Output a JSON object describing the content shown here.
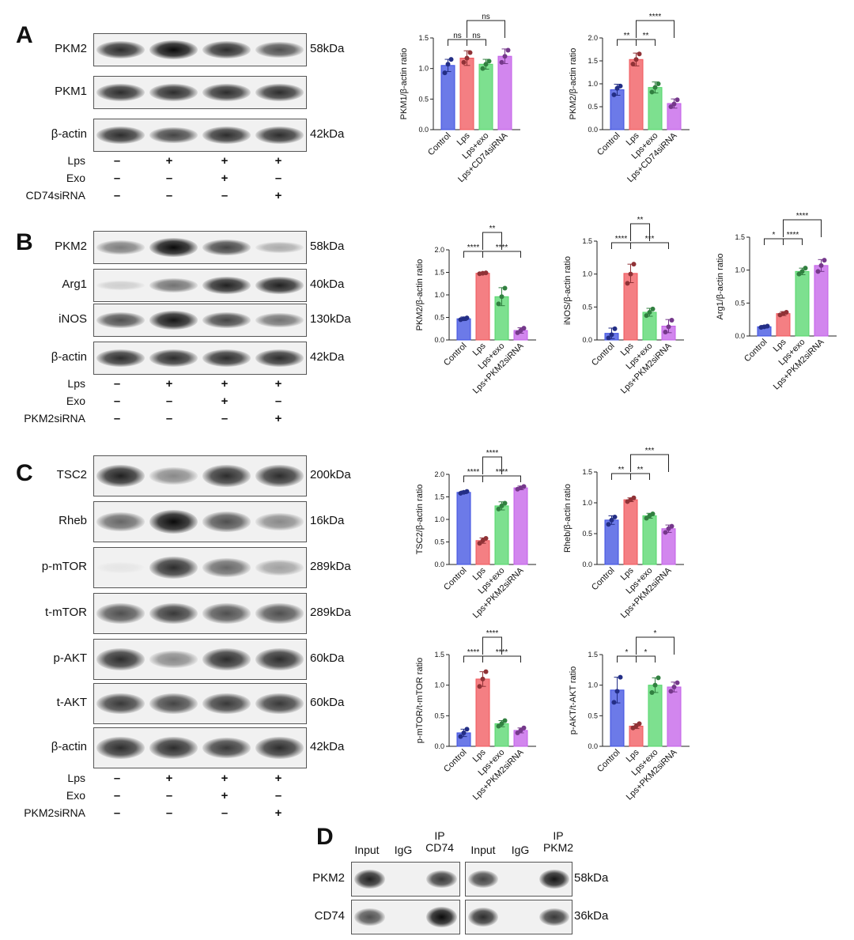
{
  "panels": {
    "A": {
      "letter": "A",
      "blots": [
        {
          "label": "PKM2",
          "kda": "58kDa",
          "lanes": [
            0.85,
            1.0,
            0.85,
            0.7
          ]
        },
        {
          "label": "PKM1",
          "kda": "",
          "lanes": [
            0.85,
            0.85,
            0.85,
            0.85
          ]
        },
        {
          "label": "β-actin",
          "kda": "42kDa",
          "lanes": [
            0.85,
            0.75,
            0.85,
            0.85
          ]
        }
      ],
      "treatments": [
        {
          "label": "Lps",
          "signs": [
            "–",
            "+",
            "+",
            "+"
          ]
        },
        {
          "label": "Exo",
          "signs": [
            "–",
            "–",
            "+",
            "–"
          ]
        },
        {
          "label": "CD74siRNA",
          "signs": [
            "–",
            "–",
            "–",
            "+"
          ]
        }
      ]
    },
    "B": {
      "letter": "B",
      "blots": [
        {
          "label": "PKM2",
          "kda": "58kDa",
          "lanes": [
            0.5,
            1.0,
            0.75,
            0.3
          ]
        },
        {
          "label": "Arg1",
          "kda": "40kDa",
          "lanes": [
            0.15,
            0.55,
            0.9,
            0.9
          ]
        },
        {
          "label": "iNOS",
          "kda": "130kDa",
          "lanes": [
            0.7,
            0.95,
            0.75,
            0.55
          ]
        },
        {
          "label": "β-actin",
          "kda": "42kDa",
          "lanes": [
            0.85,
            0.85,
            0.85,
            0.85
          ]
        }
      ],
      "treatments": [
        {
          "label": "Lps",
          "signs": [
            "–",
            "+",
            "+",
            "+"
          ]
        },
        {
          "label": "Exo",
          "signs": [
            "–",
            "–",
            "+",
            "–"
          ]
        },
        {
          "label": "PKM2siRNA",
          "signs": [
            "–",
            "–",
            "–",
            "+"
          ]
        }
      ]
    },
    "C": {
      "letter": "C",
      "blots": [
        {
          "label": "TSC2",
          "kda": "200kDa",
          "lanes": [
            0.9,
            0.45,
            0.85,
            0.85
          ]
        },
        {
          "label": "Rheb",
          "kda": "16kDa",
          "lanes": [
            0.6,
            1.0,
            0.7,
            0.45
          ]
        },
        {
          "label": "p-mTOR",
          "kda": "289kDa",
          "lanes": [
            0.05,
            0.85,
            0.6,
            0.35
          ]
        },
        {
          "label": "t-mTOR",
          "kda": "289kDa",
          "lanes": [
            0.7,
            0.8,
            0.7,
            0.7
          ]
        },
        {
          "label": "p-AKT",
          "kda": "60kDa",
          "lanes": [
            0.85,
            0.45,
            0.85,
            0.85
          ]
        },
        {
          "label": "t-AKT",
          "kda": "60kDa",
          "lanes": [
            0.8,
            0.75,
            0.8,
            0.8
          ]
        },
        {
          "label": "β-actin",
          "kda": "42kDa",
          "lanes": [
            0.85,
            0.85,
            0.8,
            0.85
          ]
        }
      ],
      "treatments": [
        {
          "label": "Lps",
          "signs": [
            "–",
            "+",
            "+",
            "+"
          ]
        },
        {
          "label": "Exo",
          "signs": [
            "–",
            "–",
            "+",
            "–"
          ]
        },
        {
          "label": "PKM2siRNA",
          "signs": [
            "–",
            "–",
            "–",
            "+"
          ]
        }
      ]
    },
    "D": {
      "letter": "D",
      "headers_left": [
        "Input",
        "IgG",
        "IP\nCD74"
      ],
      "headers_right": [
        "Input",
        "IgG",
        "IP\nPKM2"
      ],
      "rows": [
        {
          "label": "PKM2",
          "kda": "58kDa",
          "left": [
            0.9,
            0.0,
            0.8
          ],
          "right": [
            0.75,
            0.0,
            0.95
          ]
        },
        {
          "label": "CD74",
          "kda": "36kDa",
          "left": [
            0.7,
            0.0,
            1.0
          ],
          "right": [
            0.85,
            0.0,
            0.8
          ]
        }
      ]
    }
  },
  "colors": {
    "Control": "#3b4de0",
    "Lps": "#f0545a",
    "Lps+exo": "#52d66a",
    "siRNA": "#c35ee8"
  },
  "chart_data": [
    {
      "type": "bar",
      "ylabel": "PKM1/β-actin ratio",
      "categories": [
        "Control",
        "Lps",
        "Lps+exo",
        "Lps+CD74siRNA"
      ],
      "values": [
        1.05,
        1.17,
        1.07,
        1.2
      ],
      "errors": [
        0.1,
        0.12,
        0.08,
        0.12
      ],
      "points": [
        [
          0.93,
          1.07,
          1.15
        ],
        [
          1.1,
          1.17,
          1.26
        ],
        [
          1.0,
          1.07,
          1.12
        ],
        [
          1.1,
          1.2,
          1.3
        ]
      ],
      "ylim": [
        0,
        1.5
      ],
      "yticks": [
        0.0,
        0.5,
        1.0,
        1.5
      ],
      "sig": [
        {
          "from": 0,
          "to": 1,
          "label": "ns",
          "level": 0
        },
        {
          "from": 1,
          "to": 2,
          "label": "ns",
          "level": 0
        },
        {
          "from": 1,
          "to": 3,
          "label": "ns",
          "level": 1
        }
      ]
    },
    {
      "type": "bar",
      "ylabel": "PKM2/β-actin ratio",
      "categories": [
        "Control",
        "Lps",
        "Lps+exo",
        "Lps+CD74siRNA"
      ],
      "values": [
        0.87,
        1.53,
        0.92,
        0.57
      ],
      "errors": [
        0.12,
        0.14,
        0.12,
        0.1
      ],
      "points": [
        [
          0.76,
          0.9,
          0.95
        ],
        [
          1.43,
          1.53,
          1.65
        ],
        [
          0.82,
          0.92,
          1.0
        ],
        [
          0.5,
          0.56,
          0.65
        ]
      ],
      "ylim": [
        0,
        2.0
      ],
      "yticks": [
        0.0,
        0.5,
        1.0,
        1.5,
        2.0
      ],
      "sig": [
        {
          "from": 0,
          "to": 1,
          "label": "**",
          "level": 0
        },
        {
          "from": 1,
          "to": 2,
          "label": "**",
          "level": 0
        },
        {
          "from": 1,
          "to": 3,
          "label": "****",
          "level": 1
        }
      ]
    },
    {
      "type": "bar",
      "ylabel": "PKM2/β-actin ratio",
      "categories": [
        "Control",
        "Lps",
        "Lps+exo",
        "Lps+PKM2siRNA"
      ],
      "values": [
        0.47,
        1.48,
        0.96,
        0.21
      ],
      "errors": [
        0.04,
        0.02,
        0.2,
        0.06
      ],
      "points": [
        [
          0.45,
          0.47,
          0.49
        ],
        [
          1.47,
          1.48,
          1.49
        ],
        [
          0.8,
          0.96,
          1.15
        ],
        [
          0.16,
          0.21,
          0.26
        ]
      ],
      "ylim": [
        0,
        2.0
      ],
      "yticks": [
        0.0,
        0.5,
        1.0,
        1.5,
        2.0
      ],
      "sig": [
        {
          "from": 0,
          "to": 1,
          "label": "****",
          "level": 0
        },
        {
          "from": 1,
          "to": 3,
          "label": "****",
          "level": 0
        },
        {
          "from": 1,
          "to": 2,
          "label": "**",
          "level": 1
        }
      ]
    },
    {
      "type": "bar",
      "ylabel": "iNOS/β-actin ratio",
      "categories": [
        "Control",
        "Lps",
        "Lps+exo",
        "Lps+PKM2siRNA"
      ],
      "values": [
        0.1,
        1.01,
        0.42,
        0.21
      ],
      "errors": [
        0.08,
        0.14,
        0.06,
        0.1
      ],
      "points": [
        [
          0.03,
          0.08,
          0.17
        ],
        [
          0.86,
          1.0,
          1.15
        ],
        [
          0.37,
          0.42,
          0.47
        ],
        [
          0.12,
          0.2,
          0.3
        ]
      ],
      "ylim": [
        0,
        1.5
      ],
      "yticks": [
        0.0,
        0.5,
        1.0,
        1.5
      ],
      "sig": [
        {
          "from": 0,
          "to": 1,
          "label": "****",
          "level": 0
        },
        {
          "from": 1,
          "to": 3,
          "label": "***",
          "level": 0
        },
        {
          "from": 1,
          "to": 2,
          "label": "**",
          "level": 1
        }
      ]
    },
    {
      "type": "bar",
      "ylabel": "Arg1/β-actin ratio",
      "categories": [
        "Control",
        "Lps",
        "Lps+exo",
        "Lps+PKM2siRNA"
      ],
      "values": [
        0.14,
        0.34,
        0.98,
        1.07
      ],
      "errors": [
        0.02,
        0.03,
        0.05,
        0.09
      ],
      "points": [
        [
          0.13,
          0.14,
          0.15
        ],
        [
          0.32,
          0.34,
          0.36
        ],
        [
          0.94,
          0.98,
          1.03
        ],
        [
          0.98,
          1.07,
          1.15
        ]
      ],
      "ylim": [
        0,
        1.5
      ],
      "yticks": [
        0.0,
        0.5,
        1.0,
        1.5
      ],
      "sig": [
        {
          "from": 0,
          "to": 1,
          "label": "*",
          "level": 0
        },
        {
          "from": 1,
          "to": 2,
          "label": "****",
          "level": 0
        },
        {
          "from": 1,
          "to": 3,
          "label": "****",
          "level": 1
        }
      ]
    },
    {
      "type": "bar",
      "ylabel": "TSC2/β-actin ratio",
      "categories": [
        "Control",
        "Lps",
        "Lps+exo",
        "Lps+PKM2siRNA"
      ],
      "values": [
        1.6,
        0.53,
        1.3,
        1.7
      ],
      "errors": [
        0.03,
        0.06,
        0.09,
        0.04
      ],
      "points": [
        [
          1.58,
          1.6,
          1.62
        ],
        [
          0.47,
          0.53,
          0.58
        ],
        [
          1.23,
          1.3,
          1.36
        ],
        [
          1.67,
          1.7,
          1.73
        ]
      ],
      "ylim": [
        0,
        2.0
      ],
      "yticks": [
        0.0,
        0.5,
        1.0,
        1.5,
        2.0
      ],
      "sig": [
        {
          "from": 0,
          "to": 1,
          "label": "****",
          "level": 0
        },
        {
          "from": 1,
          "to": 3,
          "label": "****",
          "level": 0
        },
        {
          "from": 1,
          "to": 2,
          "label": "****",
          "level": 1
        }
      ]
    },
    {
      "type": "bar",
      "ylabel": "Rheb/β-actin ratio",
      "categories": [
        "Control",
        "Lps",
        "Lps+exo",
        "Lps+PKM2siRNA"
      ],
      "values": [
        0.72,
        1.05,
        0.79,
        0.58
      ],
      "errors": [
        0.07,
        0.03,
        0.04,
        0.06
      ],
      "points": [
        [
          0.65,
          0.72,
          0.77
        ],
        [
          1.02,
          1.05,
          1.08
        ],
        [
          0.75,
          0.79,
          0.82
        ],
        [
          0.52,
          0.58,
          0.62
        ]
      ],
      "ylim": [
        0,
        1.5
      ],
      "yticks": [
        0.0,
        0.5,
        1.0,
        1.5
      ],
      "sig": [
        {
          "from": 0,
          "to": 1,
          "label": "**",
          "level": 0
        },
        {
          "from": 1,
          "to": 2,
          "label": "**",
          "level": 0
        },
        {
          "from": 1,
          "to": 3,
          "label": "***",
          "level": 1
        }
      ]
    },
    {
      "type": "bar",
      "ylabel": "p-mTOR/t-mTOR ratio",
      "categories": [
        "Control",
        "Lps",
        "Lps+exo",
        "Lps+PKM2siRNA"
      ],
      "values": [
        0.22,
        1.1,
        0.37,
        0.26
      ],
      "errors": [
        0.06,
        0.12,
        0.05,
        0.04
      ],
      "points": [
        [
          0.16,
          0.22,
          0.28
        ],
        [
          0.98,
          1.1,
          1.22
        ],
        [
          0.33,
          0.37,
          0.42
        ],
        [
          0.22,
          0.26,
          0.3
        ]
      ],
      "ylim": [
        0,
        1.5
      ],
      "yticks": [
        0.0,
        0.5,
        1.0,
        1.5
      ],
      "sig": [
        {
          "from": 0,
          "to": 1,
          "label": "****",
          "level": 0
        },
        {
          "from": 1,
          "to": 3,
          "label": "****",
          "level": 0
        },
        {
          "from": 1,
          "to": 2,
          "label": "****",
          "level": 1
        }
      ]
    },
    {
      "type": "bar",
      "ylabel": "p-AKT/t-AKT ratio",
      "categories": [
        "Control",
        "Lps",
        "Lps+exo",
        "Lps+PKM2siRNA"
      ],
      "values": [
        0.92,
        0.33,
        1.0,
        0.97
      ],
      "errors": [
        0.21,
        0.04,
        0.12,
        0.08
      ],
      "points": [
        [
          0.72,
          0.9,
          1.13
        ],
        [
          0.3,
          0.33,
          0.37
        ],
        [
          0.88,
          1.0,
          1.12
        ],
        [
          0.9,
          0.97,
          1.04
        ]
      ],
      "ylim": [
        0,
        1.5
      ],
      "yticks": [
        0.0,
        0.5,
        1.0,
        1.5
      ],
      "sig": [
        {
          "from": 0,
          "to": 1,
          "label": "*",
          "level": 0
        },
        {
          "from": 1,
          "to": 2,
          "label": "*",
          "level": 0
        },
        {
          "from": 1,
          "to": 3,
          "label": "*",
          "level": 1
        }
      ]
    }
  ]
}
